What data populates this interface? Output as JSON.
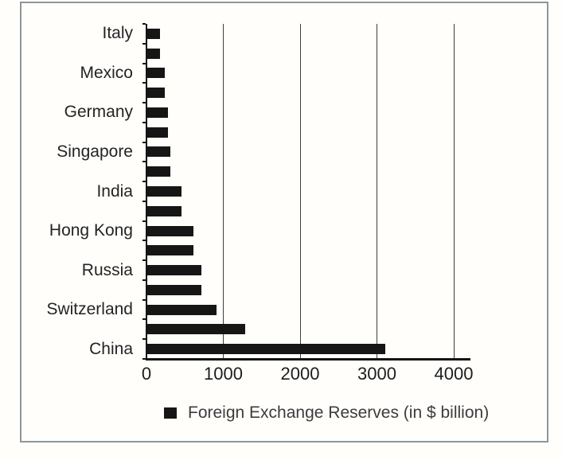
{
  "chart_data": {
    "type": "bar",
    "orientation": "horizontal",
    "legend": "Foreign Exchange Reserves (in $ billion)",
    "legend_position": "bottom",
    "grid": true,
    "xlim": [
      0,
      4200
    ],
    "x_ticks": [
      0,
      1000,
      2000,
      3000,
      4000
    ],
    "x_tick_labels": [
      "0",
      "1000",
      "2000",
      "3000",
      "4000"
    ],
    "categories": [
      "Italy",
      "",
      "Mexico",
      "",
      "Germany",
      "",
      "Singapore",
      "",
      "India",
      "",
      "Hong Kong",
      "",
      "Russia",
      "",
      "Switzerland",
      "",
      "China"
    ],
    "values": [
      170,
      170,
      230,
      230,
      265,
      265,
      305,
      305,
      450,
      450,
      600,
      600,
      700,
      700,
      900,
      1270,
      3100
    ],
    "labeled_categories": [
      "Italy",
      "Mexico",
      "Germany",
      "Singapore",
      "India",
      "Hong Kong",
      "Russia",
      "Switzerland",
      "China"
    ],
    "label_every_nth_bar": 2
  },
  "colors": {
    "bar": "#161616",
    "axis": "#141414",
    "gridline": "#3f3f3f",
    "category_text": "#242424",
    "tick_text": "#1d1d1d",
    "legend_text": "#3c3c3c",
    "frame": "#8f959c",
    "background": "#fffefb"
  }
}
